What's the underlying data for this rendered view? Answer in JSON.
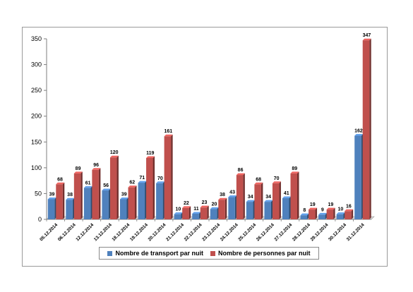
{
  "chart_data": {
    "type": "bar",
    "categories": [
      "05.12.2014",
      "06.12.2014",
      "12.12.2014",
      "13.12.2014",
      "18.12.2014",
      "19.12.2014",
      "20.12.2014",
      "21.12.2014",
      "22.12.2014",
      "23.12.2014",
      "24.12.2014",
      "25.12.2014",
      "26.12.2014",
      "27.12.2014",
      "28.12.2014",
      "29.12.2014",
      "30.12.2014",
      "31.12.2014"
    ],
    "series": [
      {
        "name": "Nombre de transport par nuit",
        "color": "#4f81bd",
        "values": [
          39,
          38,
          61,
          56,
          39,
          71,
          70,
          10,
          11,
          20,
          43,
          34,
          34,
          41,
          8,
          9,
          10,
          162
        ]
      },
      {
        "name": "Nombre de personnes par nuit",
        "color": "#c0504d",
        "values": [
          68,
          89,
          96,
          120,
          62,
          119,
          161,
          22,
          23,
          38,
          86,
          68,
          70,
          89,
          19,
          19,
          16,
          347
        ]
      }
    ],
    "ylim": [
      0,
      350
    ],
    "yticks": [
      "0",
      "50",
      "100",
      "150",
      "200",
      "250",
      "300",
      "350"
    ],
    "grid": false,
    "legend_position": "bottom"
  }
}
